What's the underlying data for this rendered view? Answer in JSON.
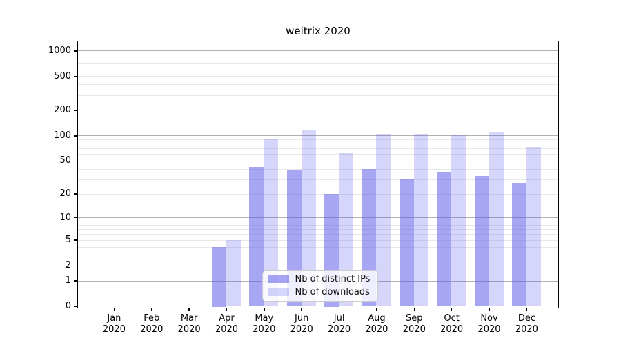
{
  "chart_data": {
    "type": "bar",
    "title": "weitrix 2020",
    "months": [
      "Jan",
      "Feb",
      "Mar",
      "Apr",
      "May",
      "Jun",
      "Jul",
      "Aug",
      "Sep",
      "Oct",
      "Nov",
      "Dec"
    ],
    "year_label": "2020",
    "series": [
      {
        "name": "Nb of distinct IPs",
        "color": "rgba(92,92,234,0.55)",
        "values": [
          0,
          0,
          0,
          4,
          42,
          38,
          20,
          40,
          30,
          36,
          33,
          27
        ]
      },
      {
        "name": "Nb of downloads",
        "color": "rgba(92,92,234,0.25)",
        "values": [
          0,
          0,
          0,
          5,
          90,
          114,
          62,
          105,
          104,
          100,
          108,
          73
        ]
      }
    ],
    "y_ticks": [
      0,
      1,
      2,
      5,
      10,
      20,
      50,
      100,
      200,
      500,
      1000
    ],
    "y_scale": "log10(value+1)",
    "ylim": [
      0,
      1290
    ],
    "grid": true,
    "legend_position": "lower center"
  },
  "colors": {
    "bar_base": "#5c5cea",
    "distinct_ips_fill": "rgba(92,92,234,0.55)",
    "downloads_fill": "rgba(92,92,234,0.25)",
    "major_gridline": "#b0b0b0",
    "minor_gridline": "#e8e8e8",
    "axis": "#000000",
    "legend_border": "#cccccc",
    "background": "#ffffff"
  }
}
